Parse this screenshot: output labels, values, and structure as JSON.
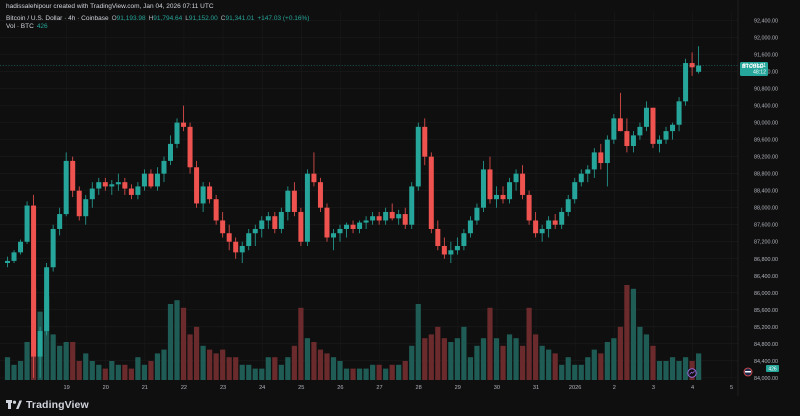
{
  "header": {
    "created_by": "hadissalehipour created with TradingView.com, Jan 04, 2026 07:11 UTC",
    "symbol_title": "Bitcoin / U.S. Dollar · 4h · Coinbase",
    "open_label": "O",
    "open_value": "91,193.98",
    "high_label": "H",
    "high_value": "91,794.64",
    "low_label": "L",
    "low_value": "91,152.00",
    "close_label": "C",
    "close_value": "91,341.01",
    "change": "+147.03 (+0.16%)",
    "volume_label": "Vol · BTC",
    "volume_value": "426"
  },
  "price_badge": {
    "symbol": "BTCUSD",
    "price": "91,341.01",
    "countdown": "48:12"
  },
  "volume_badge": "426",
  "footer": {
    "brand": "TradingView"
  },
  "colors": {
    "up": "#26a69a",
    "down": "#ef5350",
    "background": "#0f0f0f"
  },
  "chart_data": {
    "type": "candlestick",
    "interval": "4h",
    "y_ticks": [
      "92,400.00",
      "92,000.00",
      "91,600.00",
      "91,200.00",
      "90,800.00",
      "90,400.00",
      "90,000.00",
      "89,600.00",
      "89,200.00",
      "88,800.00",
      "88,400.00",
      "88,000.00",
      "87,600.00",
      "87,200.00",
      "86,800.00",
      "86,400.00",
      "86,000.00",
      "85,600.00",
      "85,200.00",
      "84,800.00",
      "84,400.00",
      "84,000.00"
    ],
    "y_tick_values": [
      92400,
      92000,
      91600,
      91200,
      90800,
      90400,
      90000,
      89600,
      89200,
      88800,
      88400,
      88000,
      87600,
      87200,
      86800,
      86400,
      86000,
      85600,
      85200,
      84800,
      84400,
      84000
    ],
    "ylim": [
      83950,
      92600
    ],
    "x_ticks": [
      "19",
      "20",
      "21",
      "22",
      "23",
      "24",
      "25",
      "26",
      "27",
      "28",
      "29",
      "30",
      "31",
      "2026",
      "2",
      "3",
      "4",
      "5"
    ],
    "x_tick_index": [
      4,
      10,
      16,
      22,
      28,
      34,
      40,
      46,
      52,
      58,
      64,
      70,
      76,
      82,
      88,
      94,
      100,
      106
    ],
    "first_day": 18,
    "candles": [
      [
        86700,
        86850,
        86600,
        86750
      ],
      [
        86750,
        87000,
        86700,
        86950
      ],
      [
        86950,
        87250,
        86900,
        87200
      ],
      [
        87200,
        88150,
        87150,
        88050
      ],
      [
        88050,
        88300,
        84000,
        84500
      ],
      [
        84500,
        85200,
        84000,
        85100
      ],
      [
        85100,
        86700,
        85000,
        86600
      ],
      [
        86600,
        87600,
        86500,
        87500
      ],
      [
        87500,
        88000,
        87350,
        87850
      ],
      [
        87850,
        89300,
        87800,
        89100
      ],
      [
        89100,
        89200,
        88250,
        88400
      ],
      [
        88400,
        88500,
        87700,
        87800
      ],
      [
        87800,
        88300,
        87600,
        88200
      ],
      [
        88200,
        88600,
        88000,
        88450
      ],
      [
        88450,
        88700,
        88300,
        88600
      ],
      [
        88600,
        88700,
        88400,
        88500
      ],
      [
        88500,
        88650,
        88300,
        88550
      ],
      [
        88550,
        88800,
        88400,
        88600
      ],
      [
        88600,
        88700,
        88300,
        88450
      ],
      [
        88450,
        88550,
        88200,
        88300
      ],
      [
        88300,
        88600,
        88200,
        88500
      ],
      [
        88500,
        88900,
        88400,
        88800
      ],
      [
        88800,
        88900,
        88450,
        88500
      ],
      [
        88500,
        88950,
        88400,
        88800
      ],
      [
        88800,
        89200,
        88600,
        89100
      ],
      [
        89100,
        89700,
        89000,
        89500
      ],
      [
        89500,
        90100,
        89400,
        90000
      ],
      [
        90000,
        90400,
        89800,
        89900
      ],
      [
        89900,
        90000,
        88800,
        88950
      ],
      [
        88950,
        89100,
        88000,
        88100
      ],
      [
        88100,
        88600,
        87900,
        88500
      ],
      [
        88500,
        88600,
        88100,
        88200
      ],
      [
        88200,
        88300,
        87600,
        87700
      ],
      [
        87700,
        87900,
        87300,
        87400
      ],
      [
        87400,
        87600,
        87000,
        87200
      ],
      [
        87200,
        87300,
        86800,
        86950
      ],
      [
        86950,
        87200,
        86700,
        87100
      ],
      [
        87100,
        87500,
        87000,
        87400
      ],
      [
        87400,
        87600,
        87100,
        87500
      ],
      [
        87500,
        87800,
        87300,
        87700
      ],
      [
        87700,
        87900,
        87500,
        87800
      ],
      [
        87800,
        87900,
        87400,
        87500
      ],
      [
        87500,
        88000,
        87400,
        87900
      ],
      [
        87900,
        88500,
        87700,
        88400
      ],
      [
        88400,
        88600,
        87800,
        87900
      ],
      [
        87900,
        88000,
        87100,
        87200
      ],
      [
        87200,
        88900,
        87100,
        88800
      ],
      [
        88800,
        89300,
        88500,
        88600
      ],
      [
        88600,
        88700,
        87900,
        88000
      ],
      [
        88000,
        88100,
        87200,
        87300
      ],
      [
        87300,
        87500,
        87000,
        87400
      ],
      [
        87400,
        87600,
        87200,
        87500
      ],
      [
        87500,
        87650,
        87300,
        87600
      ],
      [
        87600,
        87700,
        87400,
        87500
      ],
      [
        87500,
        87700,
        87400,
        87650
      ],
      [
        87650,
        87800,
        87500,
        87700
      ],
      [
        87700,
        87900,
        87600,
        87800
      ],
      [
        87800,
        87900,
        87600,
        87700
      ],
      [
        87700,
        88000,
        87600,
        87900
      ],
      [
        87900,
        88100,
        87700,
        87750
      ],
      [
        87750,
        87950,
        87600,
        87850
      ],
      [
        87850,
        88000,
        87500,
        87600
      ],
      [
        87600,
        88600,
        87500,
        88500
      ],
      [
        88500,
        90000,
        88400,
        89900
      ],
      [
        89900,
        90100,
        89000,
        89200
      ],
      [
        89200,
        89300,
        87400,
        87500
      ],
      [
        87500,
        87700,
        87000,
        87100
      ],
      [
        87100,
        87300,
        86800,
        86900
      ],
      [
        86900,
        87200,
        86700,
        87000
      ],
      [
        87000,
        87300,
        86900,
        87100
      ],
      [
        87100,
        87500,
        87000,
        87400
      ],
      [
        87400,
        87800,
        87300,
        87700
      ],
      [
        87700,
        88100,
        87600,
        88000
      ],
      [
        88000,
        89100,
        87900,
        88900
      ],
      [
        88900,
        89200,
        88100,
        88200
      ],
      [
        88200,
        88500,
        88000,
        88300
      ],
      [
        88300,
        88500,
        88100,
        88200
      ],
      [
        88200,
        88700,
        88100,
        88600
      ],
      [
        88600,
        88900,
        88400,
        88800
      ],
      [
        88800,
        89000,
        88200,
        88300
      ],
      [
        88300,
        88400,
        87600,
        87700
      ],
      [
        87700,
        87900,
        87300,
        87400
      ],
      [
        87400,
        87600,
        87200,
        87500
      ],
      [
        87500,
        87800,
        87300,
        87700
      ],
      [
        87700,
        87850,
        87500,
        87600
      ],
      [
        87600,
        88000,
        87500,
        87900
      ],
      [
        87900,
        88300,
        87800,
        88200
      ],
      [
        88200,
        88700,
        88100,
        88600
      ],
      [
        88600,
        88900,
        88500,
        88800
      ],
      [
        88800,
        89000,
        88600,
        88900
      ],
      [
        88900,
        89400,
        88700,
        89300
      ],
      [
        89300,
        89500,
        88900,
        89050
      ],
      [
        89050,
        89700,
        88500,
        89600
      ],
      [
        89600,
        90200,
        89500,
        90100
      ],
      [
        90100,
        90700,
        89800,
        89800
      ],
      [
        89800,
        90100,
        89300,
        89450
      ],
      [
        89450,
        89800,
        89300,
        89700
      ],
      [
        89700,
        90000,
        89600,
        89900
      ],
      [
        89900,
        90500,
        89800,
        90350
      ],
      [
        90350,
        90300,
        89400,
        89500
      ],
      [
        89500,
        89700,
        89300,
        89600
      ],
      [
        89600,
        89900,
        89500,
        89800
      ],
      [
        89800,
        90000,
        89600,
        89950
      ],
      [
        89950,
        90600,
        89800,
        90500
      ],
      [
        90500,
        91500,
        90400,
        91400
      ],
      [
        91400,
        91650,
        91100,
        91300
      ],
      [
        91194,
        91795,
        91152,
        91341
      ]
    ],
    "volumes": [
      6,
      4,
      5,
      10,
      24,
      18,
      22,
      12,
      9,
      10,
      10,
      5,
      7,
      5,
      4,
      3,
      5,
      4,
      4,
      3,
      6,
      4,
      5,
      7,
      8,
      20,
      21,
      19,
      12,
      14,
      9,
      8,
      7,
      8,
      6,
      6,
      4,
      4,
      3,
      3,
      6,
      6,
      4,
      6,
      9,
      19,
      11,
      10,
      8,
      7,
      6,
      5,
      3,
      3,
      3,
      3,
      4,
      4,
      3,
      4,
      4,
      5,
      9,
      20,
      11,
      12,
      14,
      11,
      10,
      11,
      14,
      6,
      9,
      11,
      19,
      11,
      9,
      12,
      11,
      9,
      19,
      12,
      9,
      8,
      7,
      4,
      6,
      4,
      4,
      6,
      8,
      7,
      10,
      11,
      14,
      25,
      24,
      14,
      12,
      9,
      5,
      5,
      6,
      5,
      6,
      5,
      7
    ]
  }
}
